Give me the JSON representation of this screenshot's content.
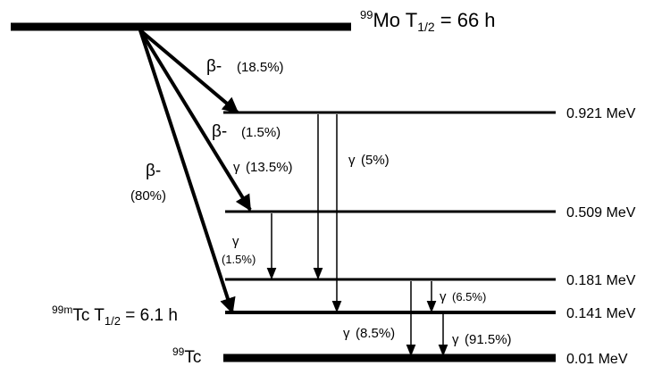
{
  "parent": {
    "mass": "99",
    "symbol": "Mo T",
    "halflife_sub": "1/2",
    "halflife_value": " = 66 h"
  },
  "metastable": {
    "mass": "99m",
    "symbol": "Tc T",
    "halflife_sub": "1/2",
    "halflife_value": " = 6.1 h"
  },
  "ground": {
    "mass": "99",
    "symbol": "Tc"
  },
  "levels": [
    {
      "energy": "0.921 MeV"
    },
    {
      "energy": "0.509 MeV"
    },
    {
      "energy": "0.181 MeV"
    },
    {
      "energy": "0.141 MeV"
    },
    {
      "energy": "0.01 MeV"
    }
  ],
  "beta_transitions": [
    {
      "symbol": "β-",
      "percent": "(18.5%)"
    },
    {
      "symbol": "β-",
      "percent": "(1.5%)"
    },
    {
      "symbol": "β-",
      "percent": "(80%)"
    }
  ],
  "gamma_transitions": [
    {
      "symbol": "γ",
      "percent": "(13.5%)"
    },
    {
      "symbol": "γ",
      "percent": "(5%)"
    },
    {
      "symbol": "γ",
      "percent": "(1.5%)"
    },
    {
      "symbol": "γ",
      "percent": "(6.5%)"
    },
    {
      "symbol": "γ",
      "percent": "(8.5%)"
    },
    {
      "symbol": "γ",
      "percent": "(91.5%)"
    }
  ]
}
